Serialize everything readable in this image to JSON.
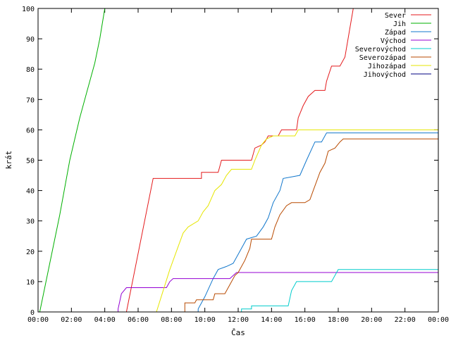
{
  "chart_data": {
    "type": "line",
    "title": "",
    "xlabel": "Čas",
    "ylabel": "krát",
    "xlim": [
      0,
      24
    ],
    "ylim": [
      0,
      100
    ],
    "x_ticks": [
      0,
      2,
      4,
      6,
      8,
      10,
      12,
      14,
      16,
      18,
      20,
      22,
      24
    ],
    "x_tick_labels": [
      "00:00",
      "02:00",
      "04:00",
      "06:00",
      "08:00",
      "10:00",
      "12:00",
      "14:00",
      "16:00",
      "18:00",
      "20:00",
      "22:00",
      "00:00"
    ],
    "y_ticks": [
      0,
      10,
      20,
      30,
      40,
      50,
      60,
      70,
      80,
      90,
      100
    ],
    "y_tick_labels": [
      "0",
      "10",
      "20",
      "30",
      "40",
      "50",
      "60",
      "70",
      "80",
      "90",
      "100"
    ],
    "grid": false,
    "legend_position": "top-right",
    "series": [
      {
        "name": "Sever",
        "color": "#e41a1c",
        "points": [
          [
            5.3,
            0
          ],
          [
            6.9,
            44
          ],
          [
            9.8,
            44
          ],
          [
            9.8,
            46
          ],
          [
            10.8,
            46
          ],
          [
            10.9,
            48
          ],
          [
            11.0,
            50
          ],
          [
            12.8,
            50
          ],
          [
            13.0,
            54
          ],
          [
            13.4,
            55
          ],
          [
            13.6,
            56
          ],
          [
            13.8,
            58
          ],
          [
            14.4,
            58
          ],
          [
            14.6,
            60
          ],
          [
            15.5,
            60
          ],
          [
            15.6,
            64
          ],
          [
            15.9,
            68
          ],
          [
            16.2,
            71
          ],
          [
            16.6,
            73
          ],
          [
            17.2,
            73
          ],
          [
            17.3,
            76
          ],
          [
            17.6,
            81
          ],
          [
            18.1,
            81
          ],
          [
            18.4,
            84
          ],
          [
            18.9,
            100
          ]
        ]
      },
      {
        "name": "Jih",
        "color": "#00b000",
        "points": [
          [
            0.1,
            0
          ],
          [
            0.7,
            16
          ],
          [
            1.3,
            32
          ],
          [
            1.9,
            50
          ],
          [
            2.5,
            64
          ],
          [
            3.0,
            74
          ],
          [
            3.4,
            82
          ],
          [
            3.7,
            90
          ],
          [
            4.0,
            100
          ]
        ]
      },
      {
        "name": "Západ",
        "color": "#1177cc",
        "points": [
          [
            9.6,
            0
          ],
          [
            9.6,
            1
          ],
          [
            10.0,
            5
          ],
          [
            10.5,
            11
          ],
          [
            10.8,
            14
          ],
          [
            11.3,
            15
          ],
          [
            11.7,
            16
          ],
          [
            12.0,
            19
          ],
          [
            12.3,
            22
          ],
          [
            12.5,
            24
          ],
          [
            13.1,
            25
          ],
          [
            13.5,
            28
          ],
          [
            13.8,
            31
          ],
          [
            14.1,
            36
          ],
          [
            14.5,
            40
          ],
          [
            14.7,
            44
          ],
          [
            15.7,
            45
          ],
          [
            16.1,
            50
          ],
          [
            16.6,
            56
          ],
          [
            17.0,
            56
          ],
          [
            17.3,
            59
          ],
          [
            24,
            59
          ]
        ]
      },
      {
        "name": "Východ",
        "color": "#9400d3",
        "points": [
          [
            4.8,
            0
          ],
          [
            4.8,
            1
          ],
          [
            5.0,
            6
          ],
          [
            5.3,
            8
          ],
          [
            7.7,
            8
          ],
          [
            7.9,
            10
          ],
          [
            8.1,
            11
          ],
          [
            11.5,
            11
          ],
          [
            11.7,
            12
          ],
          [
            11.9,
            13
          ],
          [
            24,
            13
          ]
        ]
      },
      {
        "name": "Severovýchod",
        "color": "#00cccc",
        "points": [
          [
            12.2,
            0
          ],
          [
            12.2,
            1
          ],
          [
            12.8,
            1
          ],
          [
            12.8,
            2
          ],
          [
            15.0,
            2
          ],
          [
            15.2,
            7
          ],
          [
            15.5,
            10
          ],
          [
            17.6,
            10
          ],
          [
            17.8,
            12
          ],
          [
            18.0,
            14
          ],
          [
            24,
            14
          ]
        ]
      },
      {
        "name": "Severozápad",
        "color": "#b84a00",
        "points": [
          [
            8.8,
            0
          ],
          [
            8.8,
            3
          ],
          [
            9.4,
            3
          ],
          [
            9.5,
            4
          ],
          [
            10.5,
            4
          ],
          [
            10.6,
            6
          ],
          [
            11.2,
            6
          ],
          [
            11.5,
            9
          ],
          [
            11.8,
            12
          ],
          [
            12.0,
            13
          ],
          [
            12.4,
            17
          ],
          [
            12.7,
            21
          ],
          [
            12.8,
            24
          ],
          [
            14.0,
            24
          ],
          [
            14.2,
            28
          ],
          [
            14.5,
            32
          ],
          [
            14.9,
            35
          ],
          [
            15.2,
            36
          ],
          [
            16.0,
            36
          ],
          [
            16.3,
            37
          ],
          [
            16.5,
            40
          ],
          [
            16.9,
            46
          ],
          [
            17.2,
            49
          ],
          [
            17.4,
            53
          ],
          [
            17.8,
            54
          ],
          [
            18.1,
            56
          ],
          [
            18.3,
            57
          ],
          [
            24,
            57
          ]
        ]
      },
      {
        "name": "Jihozápad",
        "color": "#e6e600",
        "points": [
          [
            7.1,
            0
          ],
          [
            7.5,
            7
          ],
          [
            7.9,
            14
          ],
          [
            8.3,
            20
          ],
          [
            8.7,
            26
          ],
          [
            9.0,
            28
          ],
          [
            9.6,
            30
          ],
          [
            9.9,
            33
          ],
          [
            10.2,
            35
          ],
          [
            10.6,
            40
          ],
          [
            11.0,
            42
          ],
          [
            11.3,
            45
          ],
          [
            11.6,
            47
          ],
          [
            12.8,
            47
          ],
          [
            13.0,
            50
          ],
          [
            13.4,
            55
          ],
          [
            13.7,
            57
          ],
          [
            14.1,
            58
          ],
          [
            15.4,
            58
          ],
          [
            15.6,
            60
          ],
          [
            24,
            60
          ]
        ]
      },
      {
        "name": "Jihovýchod",
        "color": "#000080",
        "points": []
      }
    ]
  }
}
